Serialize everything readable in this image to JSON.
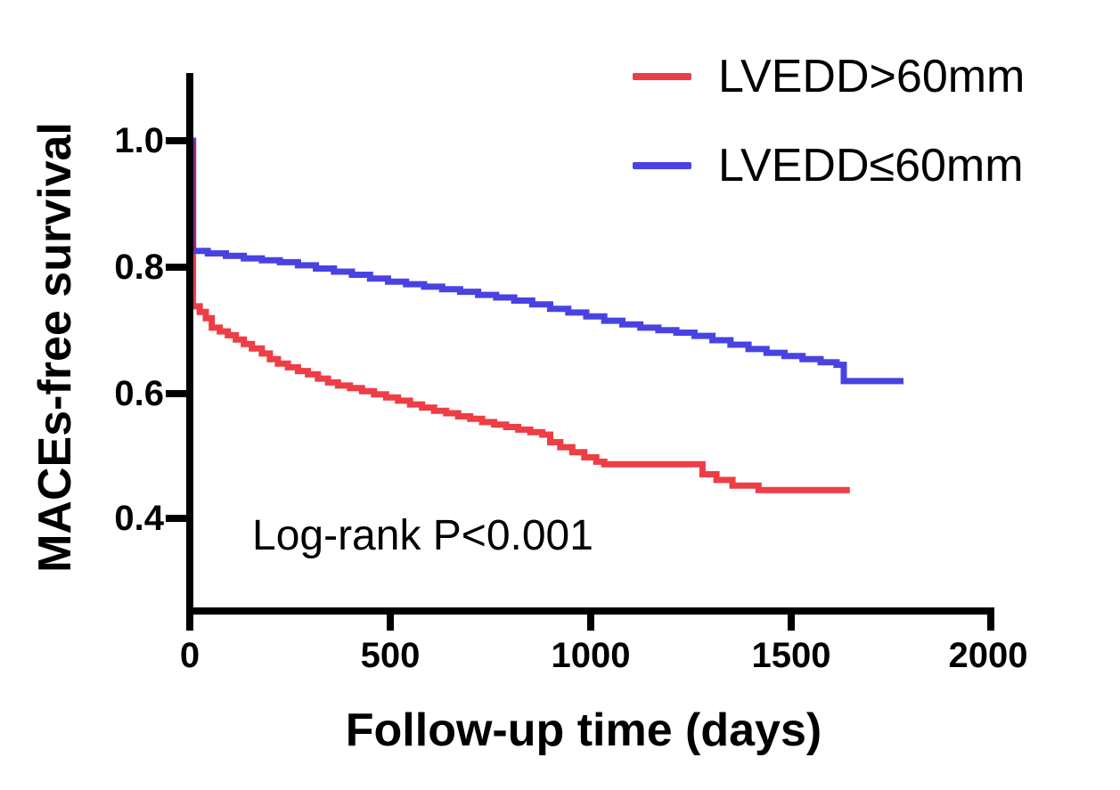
{
  "figure": {
    "background_color": "#ffffff",
    "axis_color": "#000000"
  },
  "legend": {
    "position": "top-right",
    "items": [
      {
        "label": "LVEDD>60mm",
        "color": "#ED3D45"
      },
      {
        "label": "LVEDD≤60mm",
        "color": "#4843E0"
      }
    ]
  },
  "annotation": {
    "text": "Log-rank P<0.001"
  },
  "chart_data": {
    "type": "line",
    "subtype": "kaplan-meier-step-survival",
    "title": "",
    "xlabel": "Follow-up time (days)",
    "ylabel": "MACEs-free survival",
    "xlim": [
      0,
      2000
    ],
    "ylim": [
      0.4,
      1.0
    ],
    "grid": false,
    "legend_position": "top-right",
    "xticks": [
      0,
      500,
      1000,
      1500,
      2000
    ],
    "yticks": [
      1.0,
      0.8,
      0.6,
      0.4
    ],
    "xtick_labels": [
      "0",
      "500",
      "1000",
      "1500",
      "2000"
    ],
    "ytick_labels": [
      "1.0",
      "0.8",
      "0.6",
      "0.4"
    ],
    "log_rank_text": "Log-rank P<0.001",
    "overlap_color": "#8B2A87",
    "line_width": 7,
    "series": [
      {
        "name": "LVEDD>60mm",
        "color": "#ED3D45",
        "x_end_days": 1648,
        "points": [
          [
            0,
            1.0
          ],
          [
            8,
            0.737
          ],
          [
            25,
            0.728
          ],
          [
            40,
            0.718
          ],
          [
            55,
            0.703
          ],
          [
            75,
            0.697
          ],
          [
            95,
            0.691
          ],
          [
            115,
            0.684
          ],
          [
            135,
            0.677
          ],
          [
            155,
            0.67
          ],
          [
            180,
            0.662
          ],
          [
            200,
            0.653
          ],
          [
            220,
            0.646
          ],
          [
            245,
            0.64
          ],
          [
            270,
            0.634
          ],
          [
            295,
            0.629
          ],
          [
            320,
            0.622
          ],
          [
            345,
            0.616
          ],
          [
            370,
            0.611
          ],
          [
            400,
            0.607
          ],
          [
            430,
            0.602
          ],
          [
            460,
            0.597
          ],
          [
            490,
            0.592
          ],
          [
            520,
            0.587
          ],
          [
            550,
            0.581
          ],
          [
            580,
            0.576
          ],
          [
            610,
            0.571
          ],
          [
            640,
            0.567
          ],
          [
            670,
            0.562
          ],
          [
            700,
            0.558
          ],
          [
            730,
            0.553
          ],
          [
            760,
            0.549
          ],
          [
            790,
            0.545
          ],
          [
            820,
            0.541
          ],
          [
            850,
            0.537
          ],
          [
            880,
            0.533
          ],
          [
            900,
            0.521
          ],
          [
            925,
            0.513
          ],
          [
            955,
            0.505
          ],
          [
            985,
            0.497
          ],
          [
            1015,
            0.49
          ],
          [
            1035,
            0.486
          ],
          [
            1280,
            0.47
          ],
          [
            1315,
            0.461
          ],
          [
            1355,
            0.452
          ],
          [
            1420,
            0.445
          ],
          [
            1648,
            0.445
          ]
        ]
      },
      {
        "name": "LVEDD≤60mm",
        "color": "#4843E0",
        "x_end_days": 1782,
        "points": [
          [
            0,
            1.0
          ],
          [
            8,
            0.825
          ],
          [
            45,
            0.821
          ],
          [
            90,
            0.817
          ],
          [
            135,
            0.813
          ],
          [
            180,
            0.81
          ],
          [
            225,
            0.807
          ],
          [
            270,
            0.802
          ],
          [
            315,
            0.797
          ],
          [
            360,
            0.792
          ],
          [
            405,
            0.787
          ],
          [
            450,
            0.781
          ],
          [
            495,
            0.776
          ],
          [
            540,
            0.772
          ],
          [
            585,
            0.768
          ],
          [
            630,
            0.764
          ],
          [
            675,
            0.76
          ],
          [
            720,
            0.755
          ],
          [
            765,
            0.751
          ],
          [
            810,
            0.746
          ],
          [
            855,
            0.74
          ],
          [
            900,
            0.733
          ],
          [
            945,
            0.727
          ],
          [
            990,
            0.721
          ],
          [
            1035,
            0.714
          ],
          [
            1080,
            0.708
          ],
          [
            1125,
            0.703
          ],
          [
            1170,
            0.699
          ],
          [
            1215,
            0.695
          ],
          [
            1260,
            0.69
          ],
          [
            1305,
            0.683
          ],
          [
            1350,
            0.676
          ],
          [
            1395,
            0.669
          ],
          [
            1440,
            0.663
          ],
          [
            1485,
            0.658
          ],
          [
            1530,
            0.653
          ],
          [
            1575,
            0.648
          ],
          [
            1615,
            0.644
          ],
          [
            1633,
            0.618
          ],
          [
            1782,
            0.618
          ]
        ]
      }
    ]
  }
}
